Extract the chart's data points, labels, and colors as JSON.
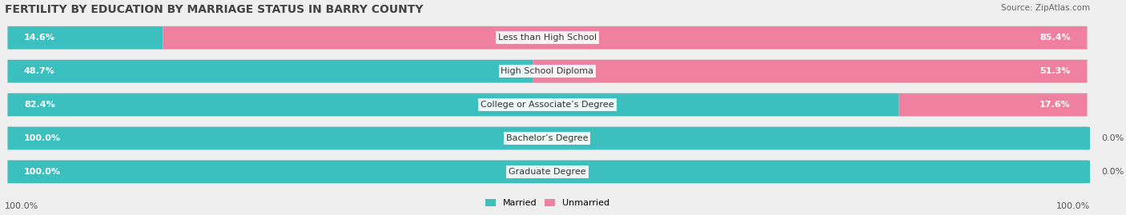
{
  "title": "FERTILITY BY EDUCATION BY MARRIAGE STATUS IN BARRY COUNTY",
  "source": "Source: ZipAtlas.com",
  "categories": [
    "Less than High School",
    "High School Diploma",
    "College or Associate’s Degree",
    "Bachelor’s Degree",
    "Graduate Degree"
  ],
  "married": [
    14.6,
    48.7,
    82.4,
    100.0,
    100.0
  ],
  "unmarried": [
    85.4,
    51.3,
    17.6,
    0.0,
    0.0
  ],
  "married_color": "#3bbfbf",
  "unmarried_color": "#f080a0",
  "bg_color": "#efefef",
  "title_fontsize": 10,
  "source_fontsize": 7.5,
  "label_fontsize": 8,
  "value_fontsize": 8,
  "bar_height": 0.68,
  "x_left_label": "100.0%",
  "x_right_label": "100.0%"
}
